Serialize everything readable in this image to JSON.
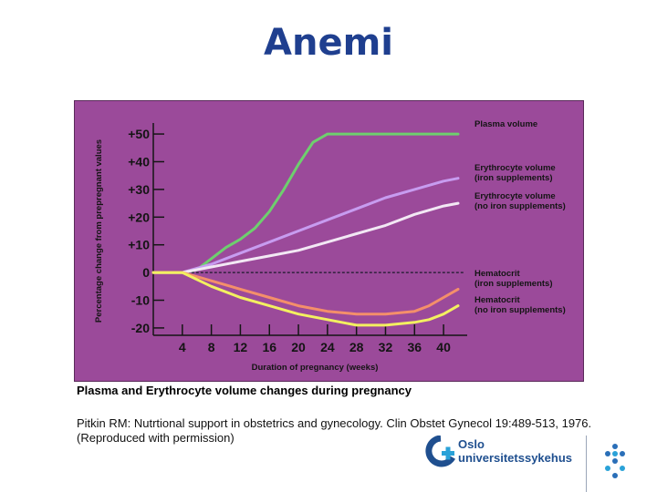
{
  "slide": {
    "title": "Anemi"
  },
  "caption": "Plasma and Erythrocyte volume changes during pregnancy",
  "reference": {
    "line1": "Pitkin RM: Nutrtional support in obstetrics and gynecology. Clin Obstet Gynecol 19:489-513, 1976.",
    "line2": "(Reproduced with permission)"
  },
  "logo": {
    "line1": "Oslo",
    "line2": "universitetssykehus"
  },
  "chart_data": {
    "type": "line",
    "xlabel": "Duration of pregnancy (weeks)",
    "ylabel": "Percentage change from prepregnant values",
    "xlim": [
      0,
      42
    ],
    "ylim": [
      -22,
      52
    ],
    "xticks": [
      4,
      8,
      12,
      16,
      20,
      24,
      28,
      32,
      36,
      40
    ],
    "yticks": [
      50,
      40,
      30,
      20,
      10,
      0,
      -10,
      -20
    ],
    "ytick_labels": [
      "+50",
      "+40",
      "+30",
      "+20",
      "+10",
      "0",
      "-10",
      "-20"
    ],
    "grid": false,
    "background": "#9b4a9a",
    "series": [
      {
        "label_lines": [
          "Plasma volume"
        ],
        "color": "#6ecf6e",
        "x": [
          0,
          4,
          6,
          8,
          10,
          12,
          14,
          16,
          18,
          20,
          22,
          24,
          26,
          28,
          32,
          36,
          40,
          42
        ],
        "y": [
          0,
          0,
          1,
          5,
          9,
          12,
          16,
          22,
          30,
          39,
          47,
          50,
          50,
          50,
          50,
          50,
          50,
          50
        ]
      },
      {
        "label_lines": [
          "Erythrocyte volume",
          "(iron supplements)"
        ],
        "color": "#c79cf0",
        "x": [
          0,
          4,
          8,
          12,
          16,
          20,
          24,
          28,
          32,
          36,
          40,
          42
        ],
        "y": [
          0,
          0,
          3,
          7,
          11,
          15,
          19,
          23,
          27,
          30,
          33,
          34
        ]
      },
      {
        "label_lines": [
          "Erythrocyte volume",
          "(no iron supplements)"
        ],
        "color": "#f2e8f4",
        "x": [
          0,
          4,
          8,
          12,
          16,
          20,
          24,
          28,
          32,
          36,
          40,
          42
        ],
        "y": [
          0,
          0,
          2,
          4,
          6,
          8,
          11,
          14,
          17,
          21,
          24,
          25
        ]
      },
      {
        "label_lines": [
          "Hematocrit",
          "(iron supplements)"
        ],
        "color": "#f48f6a",
        "x": [
          0,
          4,
          8,
          12,
          16,
          20,
          24,
          28,
          32,
          36,
          38,
          40,
          42
        ],
        "y": [
          0,
          0,
          -3,
          -6,
          -9,
          -12,
          -14,
          -15,
          -15,
          -14,
          -12,
          -9,
          -6
        ]
      },
      {
        "label_lines": [
          "Hematocrit",
          "(no iron supplements)"
        ],
        "color": "#f3f060",
        "x": [
          0,
          4,
          8,
          12,
          16,
          20,
          24,
          28,
          32,
          36,
          38,
          40,
          42
        ],
        "y": [
          0,
          0,
          -5,
          -9,
          -12,
          -15,
          -17,
          -19,
          -19,
          -18,
          -17,
          -15,
          -12
        ]
      }
    ],
    "reference_line": {
      "y": 0,
      "style": "dashed",
      "color": "#1a1a2a"
    }
  }
}
